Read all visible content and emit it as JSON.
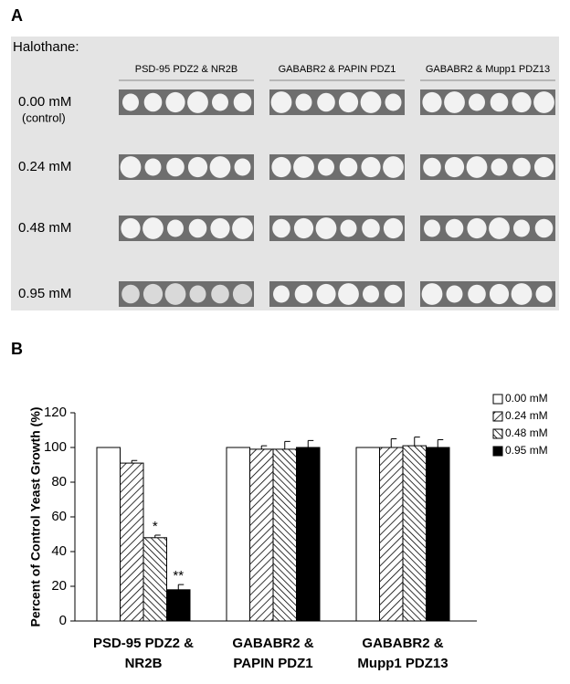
{
  "panel_a": {
    "label": "A",
    "title": "Halothane:",
    "columns": [
      "PSD-95 PDZ2 & NR2B",
      "GABABR2 & PAPIN PDZ1",
      "GABABR2 & Mupp1 PDZ13"
    ],
    "rows": [
      {
        "label": "0.00 mM",
        "sublabel": "(control)"
      },
      {
        "label": "0.24 mM"
      },
      {
        "label": "0.48 mM"
      },
      {
        "label": "0.95 mM"
      }
    ]
  },
  "chart_data": {
    "type": "bar",
    "panel_label": "B",
    "ylabel": "Percent of Control Yeast Growth (%)",
    "categories": [
      [
        "PSD-95 PDZ2 &",
        "NR2B"
      ],
      [
        "GABABR2 &",
        "PAPIN PDZ1"
      ],
      [
        "GABABR2 &",
        "Mupp1 PDZ13"
      ]
    ],
    "series": [
      {
        "name": "0.00 mM",
        "color": "#ffffff",
        "pattern": "none",
        "values": [
          100,
          100,
          100
        ]
      },
      {
        "name": "0.24 mM",
        "color": "#000000",
        "pattern": "hatch-forward",
        "values": [
          91,
          99,
          100
        ],
        "errors": [
          1.5,
          2,
          5
        ]
      },
      {
        "name": "0.48 mM",
        "color": "#000000",
        "pattern": "hatch-back",
        "values": [
          48,
          99,
          101
        ],
        "errors": [
          1.5,
          4.5,
          5
        ],
        "significance": [
          "*",
          null,
          null
        ]
      },
      {
        "name": "0.95 mM",
        "color": "#000000",
        "pattern": "solid",
        "values": [
          18,
          100,
          100
        ],
        "errors": [
          3,
          4,
          4.5
        ],
        "significance": [
          "**",
          null,
          null
        ]
      }
    ],
    "ylim": [
      0,
      120
    ],
    "yticks": [
      0,
      20,
      40,
      60,
      80,
      100,
      120
    ],
    "legend": "top-right"
  }
}
